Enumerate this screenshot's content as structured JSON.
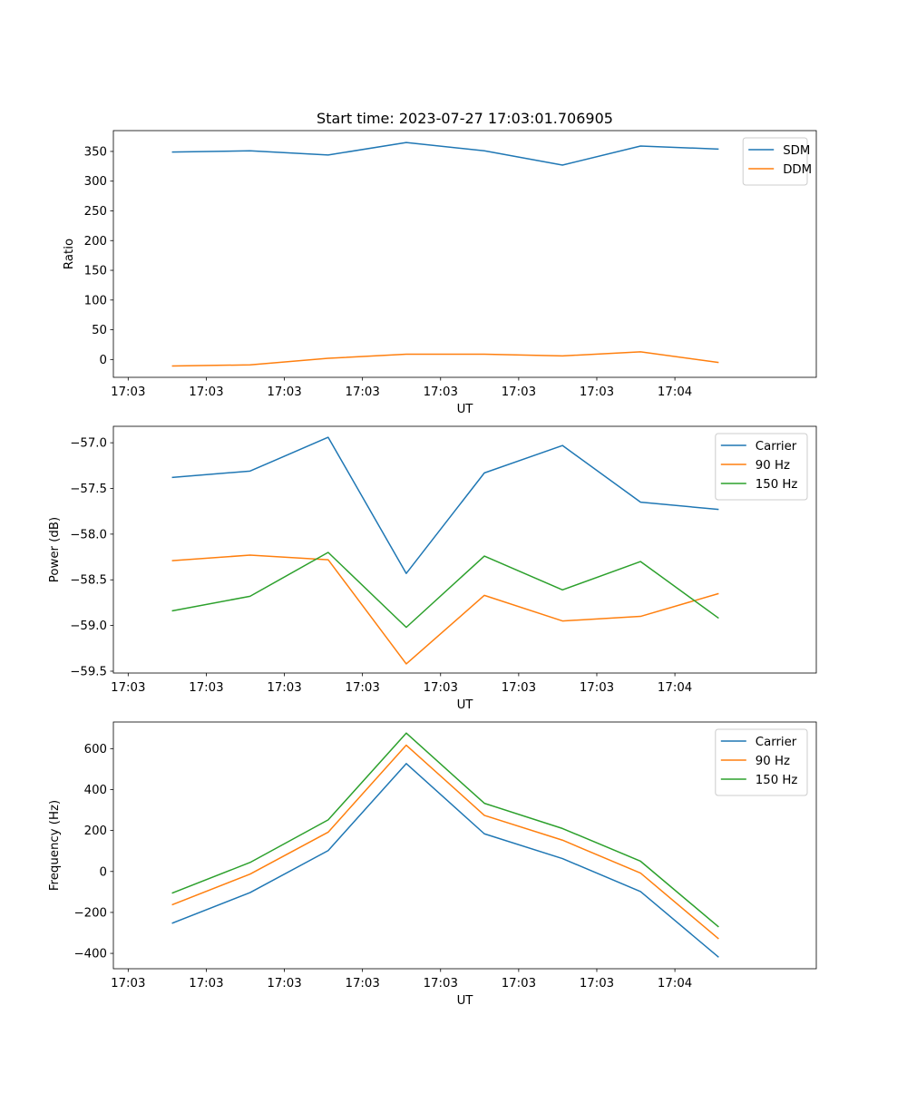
{
  "chart_data": {
    "title": "Start time: 2023-07-27 17:03:01.706905",
    "x_tick_labels": [
      "17:03",
      "17:03",
      "17:03",
      "17:03",
      "17:03",
      "17:03",
      "17:03"
    ],
    "x_tick_label_last": "17:04",
    "panels": [
      {
        "type": "line",
        "xlabel": "UT",
        "ylabel": "Ratio",
        "xlim": [
          0,
          9
        ],
        "ylim": [
          -30,
          385
        ],
        "yticks": [
          0,
          50,
          100,
          150,
          200,
          250,
          300,
          350
        ],
        "ytick_labels": [
          "0",
          "50",
          "100",
          "150",
          "200",
          "250",
          "300",
          "350"
        ],
        "legend": "top-right",
        "series": [
          {
            "name": "SDM",
            "color": "#1f77b4",
            "x": [
              0.75,
              1.75,
              2.75,
              3.75,
              4.75,
              5.75,
              6.75,
              7.75
            ],
            "values": [
              349,
              351,
              344,
              365,
              351,
              327,
              359,
              354
            ]
          },
          {
            "name": "DDM",
            "color": "#ff7f0e",
            "x": [
              0.75,
              1.75,
              2.75,
              3.75,
              4.75,
              5.75,
              6.75,
              7.75
            ],
            "values": [
              -11,
              -9,
              2,
              9,
              9,
              6,
              13,
              -5
            ]
          }
        ]
      },
      {
        "type": "line",
        "xlabel": "UT",
        "ylabel": "Power (dB)",
        "xlim": [
          0,
          9
        ],
        "ylim": [
          -59.52,
          -56.82
        ],
        "yticks": [
          -59.5,
          -59.0,
          -58.5,
          -58.0,
          -57.5,
          -57.0
        ],
        "ytick_labels": [
          "−59.5",
          "−59.0",
          "−58.5",
          "−58.0",
          "−57.5",
          "−57.0"
        ],
        "legend": "top-right",
        "series": [
          {
            "name": "Carrier",
            "color": "#1f77b4",
            "x": [
              0.75,
              1.75,
              2.75,
              3.75,
              4.75,
              5.75,
              6.75,
              7.75
            ],
            "values": [
              -57.38,
              -57.31,
              -56.94,
              -58.43,
              -57.33,
              -57.03,
              -57.65,
              -57.73
            ]
          },
          {
            "name": "90 Hz",
            "color": "#ff7f0e",
            "x": [
              0.75,
              1.75,
              2.75,
              3.75,
              4.75,
              5.75,
              6.75,
              7.75
            ],
            "values": [
              -58.29,
              -58.23,
              -58.28,
              -59.42,
              -58.67,
              -58.95,
              -58.9,
              -58.65
            ]
          },
          {
            "name": "150 Hz",
            "color": "#2ca02c",
            "x": [
              0.75,
              1.75,
              2.75,
              3.75,
              4.75,
              5.75,
              6.75,
              7.75
            ],
            "values": [
              -58.84,
              -58.68,
              -58.2,
              -59.02,
              -58.24,
              -58.61,
              -58.3,
              -58.92
            ]
          }
        ]
      },
      {
        "type": "line",
        "xlabel": "UT",
        "ylabel": "Frequency (Hz)",
        "xlim": [
          0,
          9
        ],
        "ylim": [
          -475,
          730
        ],
        "yticks": [
          -400,
          -200,
          0,
          200,
          400,
          600
        ],
        "ytick_labels": [
          "−400",
          "−200",
          "0",
          "200",
          "400",
          "600"
        ],
        "legend": "top-right",
        "series": [
          {
            "name": "Carrier",
            "color": "#1f77b4",
            "x": [
              0.75,
              1.75,
              2.75,
              3.75,
              4.75,
              5.75,
              6.75,
              7.75
            ],
            "values": [
              -253,
              -103,
              102,
              527,
              184,
              63,
              -98,
              -419
            ]
          },
          {
            "name": "90 Hz",
            "color": "#ff7f0e",
            "x": [
              0.75,
              1.75,
              2.75,
              3.75,
              4.75,
              5.75,
              6.75,
              7.75
            ],
            "values": [
              -163,
              -13,
              192,
              617,
              274,
              153,
              -8,
              -329
            ]
          },
          {
            "name": "150 Hz",
            "color": "#2ca02c",
            "x": [
              0.75,
              1.75,
              2.75,
              3.75,
              4.75,
              5.75,
              6.75,
              7.75
            ],
            "values": [
              -106,
              44,
              252,
              676,
              333,
              210,
              50,
              -271
            ]
          }
        ]
      }
    ]
  }
}
